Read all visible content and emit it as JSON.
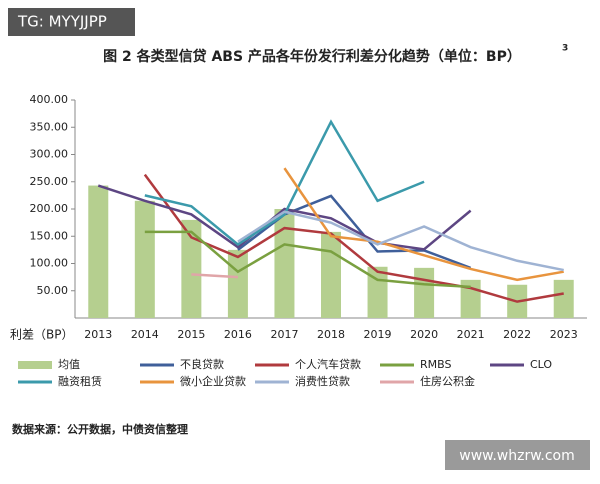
{
  "header": {
    "badge": "TG: MYYJJPP"
  },
  "chart_data": {
    "type": "combo",
    "title": "图 2 各类型信贷 ABS 产品各年份发行利差分化趋势（单位：BP）",
    "title_note": "3",
    "y_label": "利差（BP）",
    "categories": [
      "2013",
      "2014",
      "2015",
      "2016",
      "2017",
      "2018",
      "2019",
      "2020",
      "2021",
      "2022",
      "2023"
    ],
    "ylim": [
      0,
      400
    ],
    "yticks": [
      {
        "value": 50,
        "label": "50.00"
      },
      {
        "value": 100,
        "label": "100.00"
      },
      {
        "value": 150,
        "label": "150.00"
      },
      {
        "value": 200,
        "label": "200.00"
      },
      {
        "value": 250,
        "label": "250.00"
      },
      {
        "value": 300,
        "label": "300.00"
      },
      {
        "value": 350,
        "label": "350.00"
      },
      {
        "value": 400,
        "label": "400.00"
      }
    ],
    "series": [
      {
        "name": "均值",
        "type": "bar",
        "color": "#b5cf8f",
        "values": [
          243,
          215,
          180,
          125,
          200,
          158,
          94,
          92,
          70,
          61,
          70
        ]
      },
      {
        "name": "不良贷款",
        "type": "line",
        "color": "#3f5f9a",
        "values": [
          null,
          null,
          null,
          125,
          190,
          224,
          122,
          124,
          92,
          null,
          null
        ]
      },
      {
        "name": "个人汽车贷款",
        "type": "line",
        "color": "#b03a3e",
        "values": [
          null,
          263,
          148,
          112,
          165,
          155,
          85,
          70,
          55,
          30,
          45
        ]
      },
      {
        "name": "RMBS",
        "type": "line",
        "color": "#7aa040",
        "values": [
          null,
          158,
          158,
          85,
          135,
          122,
          70,
          62,
          57,
          null,
          null
        ]
      },
      {
        "name": "CLO",
        "type": "line",
        "color": "#5d4683",
        "values": [
          243,
          215,
          190,
          130,
          200,
          183,
          138,
          126,
          197,
          null,
          null
        ]
      },
      {
        "name": "融资租赁",
        "type": "line",
        "color": "#3b9aab",
        "values": [
          null,
          225,
          205,
          135,
          190,
          360,
          215,
          250,
          null,
          null,
          null
        ]
      },
      {
        "name": "微小企业贷款",
        "type": "line",
        "color": "#e8943e",
        "values": [
          null,
          null,
          null,
          null,
          275,
          150,
          140,
          115,
          90,
          70,
          85
        ]
      },
      {
        "name": "消费性贷款",
        "type": "line",
        "color": "#9fb3d3",
        "values": [
          null,
          null,
          null,
          140,
          195,
          175,
          135,
          168,
          130,
          105,
          88
        ]
      },
      {
        "name": "住房公积金",
        "type": "line",
        "color": "#e0a5a8",
        "values": [
          null,
          null,
          80,
          75,
          null,
          null,
          null,
          null,
          null,
          null,
          null
        ]
      }
    ],
    "source": "数据来源：公开数据，中债资信整理"
  },
  "footer": {
    "watermark": "www.whzrw.com"
  }
}
